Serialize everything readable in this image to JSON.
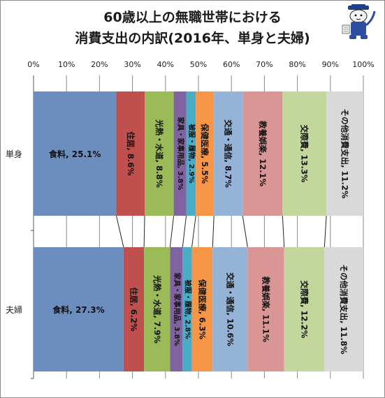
{
  "title_line1": "60歳以上の無職世帯における",
  "title_line2": "消費支出の内訳(2016年、単身と夫婦)",
  "mascot_icon": "cat-mascot-icon",
  "chart_data": {
    "type": "bar",
    "orientation": "horizontal",
    "stacked": "percent",
    "categories": [
      "単身",
      "夫婦"
    ],
    "xlim": [
      0,
      100
    ],
    "xticks": [
      "0%",
      "10%",
      "20%",
      "30%",
      "40%",
      "50%",
      "60%",
      "70%",
      "80%",
      "90%",
      "100%"
    ],
    "grid": true,
    "series_lines": true,
    "series": [
      {
        "name": "食料",
        "color": "#6c8ebf",
        "values": [
          25.1,
          27.3
        ],
        "labels": [
          "食料, 25.1%",
          "食料, 27.3%"
        ]
      },
      {
        "name": "住居",
        "color": "#c0504d",
        "values": [
          8.6,
          6.2
        ],
        "labels": [
          "住居, 8.6%",
          "住居, 6.2%"
        ]
      },
      {
        "name": "光熱・水道",
        "color": "#9bbb59",
        "values": [
          8.8,
          7.9
        ],
        "labels": [
          "光熱・水道, 8.8%",
          "光熱・水道, 7.9%"
        ]
      },
      {
        "name": "家具・家事用品",
        "color": "#8064a2",
        "values": [
          3.8,
          3.8
        ],
        "labels": [
          "家具・家事用品, 3.8%",
          "家具・家事用品, 3.8%"
        ]
      },
      {
        "name": "被服・履物",
        "color": "#4bacc6",
        "values": [
          2.9,
          2.8
        ],
        "labels": [
          "被服・履物, 2.9%",
          "被服・履物, 2.8%"
        ]
      },
      {
        "name": "保健医療",
        "color": "#f79646",
        "values": [
          5.5,
          6.3
        ],
        "labels": [
          "保健医療, 5.5%",
          "保健医療, 6.3%"
        ]
      },
      {
        "name": "交通・通信",
        "color": "#95b3d7",
        "values": [
          8.7,
          10.6
        ],
        "labels": [
          "交通・通信, 8.7%",
          "交通・通信, 10.6%"
        ]
      },
      {
        "name": "教養娯楽",
        "color": "#da9694",
        "values": [
          12.1,
          11.1
        ],
        "labels": [
          "教養娯楽, 12.1%",
          "教養娯楽, 11.1%"
        ]
      },
      {
        "name": "交際費",
        "color": "#c3d69b",
        "values": [
          13.3,
          12.2
        ],
        "labels": [
          "交際費, 13.3%",
          "交際費, 12.2%"
        ]
      },
      {
        "name": "その他消費支出",
        "color": "#d9d9d9",
        "values": [
          11.2,
          11.8
        ],
        "labels": [
          "その他消費支出, 11.2%",
          "その他消費支出, 11.8%"
        ]
      }
    ]
  }
}
